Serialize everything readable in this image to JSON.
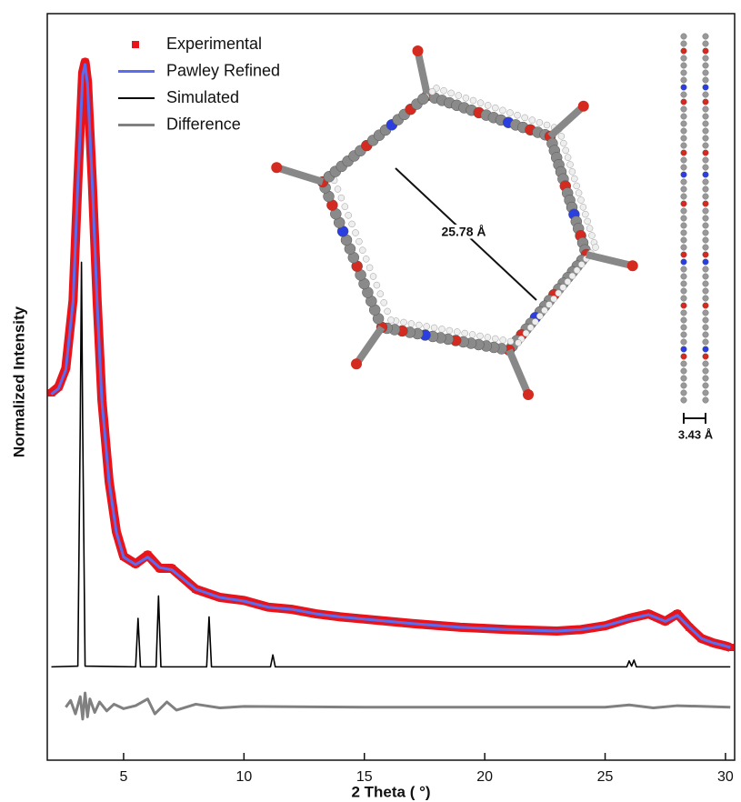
{
  "chart_data": {
    "type": "line",
    "x_label": "2 Theta ( °)",
    "y_label": "Normalized Intensity",
    "xlim": [
      1.83,
      30.38
    ],
    "xticks": [
      5,
      10,
      15,
      20,
      25,
      30
    ],
    "ylim": [
      0,
      1
    ],
    "legend": "top-left",
    "annotations": [
      "25.78 Å",
      "3.43 Å"
    ],
    "series": [
      {
        "name": "Experimental",
        "type": "scatter",
        "color": "#e8141b",
        "x": [
          2.0,
          2.3,
          2.6,
          2.9,
          3.1,
          3.3,
          3.4,
          3.5,
          3.7,
          3.9,
          4.1,
          4.4,
          4.7,
          5.0,
          5.5,
          6.0,
          6.5,
          7.0,
          8.0,
          9.0,
          10,
          11,
          12,
          13,
          14,
          15,
          17,
          19,
          21,
          23,
          24,
          25,
          26,
          26.8,
          27.5,
          28,
          28.5,
          29,
          29.5,
          30,
          30.2
        ],
        "values": [
          0.492,
          0.5,
          0.525,
          0.616,
          0.775,
          0.921,
          0.935,
          0.909,
          0.775,
          0.616,
          0.482,
          0.373,
          0.306,
          0.273,
          0.263,
          0.275,
          0.257,
          0.257,
          0.229,
          0.218,
          0.214,
          0.205,
          0.202,
          0.196,
          0.192,
          0.189,
          0.183,
          0.178,
          0.175,
          0.173,
          0.175,
          0.18,
          0.19,
          0.196,
          0.186,
          0.196,
          0.178,
          0.163,
          0.157,
          0.153,
          0.151
        ]
      },
      {
        "name": "Pawley Refined",
        "type": "line",
        "color": "#5a6cf0",
        "x": [
          2.0,
          2.3,
          2.6,
          2.9,
          3.1,
          3.3,
          3.4,
          3.5,
          3.7,
          3.9,
          4.1,
          4.4,
          4.7,
          5.0,
          5.5,
          6.0,
          6.5,
          7.0,
          8.0,
          9.0,
          10,
          11,
          12,
          13,
          14,
          15,
          17,
          19,
          21,
          23,
          24,
          25,
          26,
          26.8,
          27.5,
          28,
          28.5,
          29,
          29.5,
          30,
          30.2
        ],
        "values": [
          0.49,
          0.498,
          0.523,
          0.614,
          0.772,
          0.918,
          0.932,
          0.906,
          0.772,
          0.614,
          0.48,
          0.372,
          0.305,
          0.272,
          0.262,
          0.272,
          0.258,
          0.255,
          0.229,
          0.218,
          0.213,
          0.205,
          0.202,
          0.196,
          0.192,
          0.189,
          0.183,
          0.178,
          0.175,
          0.173,
          0.175,
          0.18,
          0.189,
          0.195,
          0.186,
          0.194,
          0.178,
          0.163,
          0.157,
          0.153,
          0.151
        ]
      },
      {
        "name": "Simulated",
        "type": "line",
        "color": "#000000",
        "x": [
          2.0,
          3.1,
          3.2,
          3.25,
          3.3,
          3.4,
          5.5,
          5.6,
          5.7,
          6.35,
          6.45,
          6.55,
          8.45,
          8.55,
          8.65,
          11.1,
          11.2,
          11.3,
          25.9,
          26.0,
          26.1,
          26.2,
          26.3,
          30.2
        ],
        "values": [
          0.125,
          0.126,
          0.45,
          0.667,
          0.45,
          0.126,
          0.125,
          0.19,
          0.125,
          0.125,
          0.22,
          0.125,
          0.125,
          0.192,
          0.125,
          0.125,
          0.141,
          0.125,
          0.125,
          0.133,
          0.126,
          0.134,
          0.125,
          0.125
        ]
      },
      {
        "name": "Difference",
        "type": "line",
        "color": "#808080",
        "x": [
          2.6,
          2.8,
          3.0,
          3.2,
          3.3,
          3.4,
          3.5,
          3.6,
          3.8,
          4.0,
          4.3,
          4.6,
          5.0,
          5.5,
          6.0,
          6.3,
          6.8,
          7.2,
          8.0,
          9,
          10,
          15,
          20,
          25,
          26,
          27,
          28,
          30.2
        ],
        "values": [
          0.071,
          0.08,
          0.062,
          0.085,
          0.055,
          0.09,
          0.058,
          0.082,
          0.064,
          0.078,
          0.066,
          0.075,
          0.069,
          0.073,
          0.082,
          0.062,
          0.078,
          0.067,
          0.075,
          0.07,
          0.072,
          0.071,
          0.071,
          0.071,
          0.074,
          0.07,
          0.073,
          0.071
        ]
      }
    ]
  }
}
